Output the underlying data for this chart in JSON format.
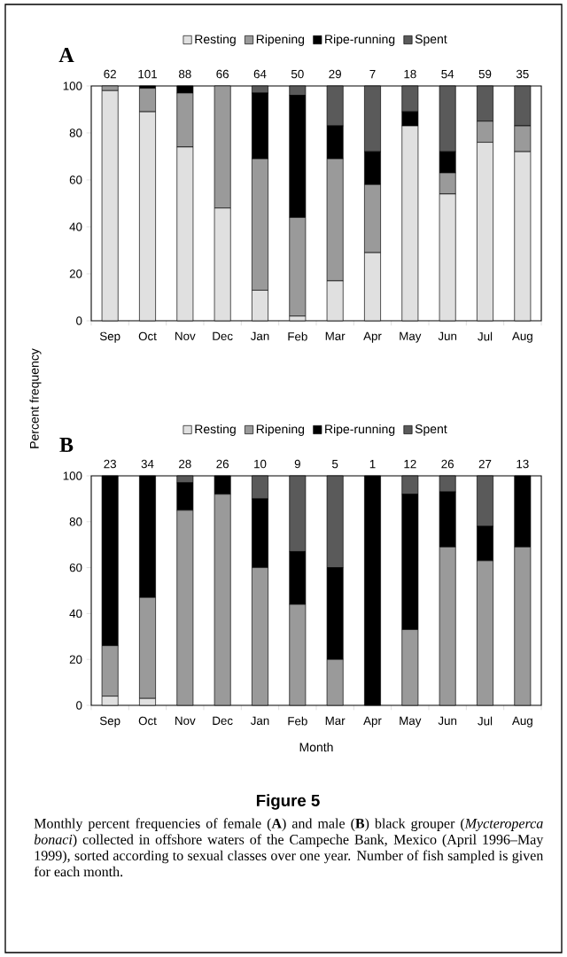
{
  "chart_data": [
    {
      "type": "bar",
      "stacked": true,
      "title": "A",
      "ylabel": "Percent frequency",
      "legend": "top",
      "categories": [
        "Sep",
        "Oct",
        "Nov",
        "Dec",
        "Jan",
        "Feb",
        "Mar",
        "Apr",
        "May",
        "Jun",
        "Jul",
        "Aug"
      ],
      "ylim": [
        0,
        100
      ],
      "yticks": [
        0,
        20,
        40,
        60,
        80,
        100
      ],
      "series": [
        {
          "name": "Resting",
          "color": "#e0e0e0",
          "values": [
            98,
            89,
            74,
            48,
            13,
            2,
            17,
            29,
            83,
            54,
            76,
            72
          ]
        },
        {
          "name": "Ripening",
          "color": "#9a9a9a",
          "values": [
            2,
            10,
            23,
            52,
            56,
            42,
            52,
            29,
            0,
            9,
            9,
            11
          ]
        },
        {
          "name": "Ripe-running",
          "color": "#000000",
          "values": [
            0,
            1,
            3,
            0,
            28,
            52,
            14,
            14,
            6,
            9,
            0,
            0
          ]
        },
        {
          "name": "Spent",
          "color": "#5a5a5a",
          "values": [
            0,
            0,
            0,
            0,
            3,
            4,
            17,
            28,
            11,
            28,
            15,
            17
          ]
        }
      ],
      "annotations": [
        {
          "text": "62",
          "x": "Sep",
          "y": 100
        },
        {
          "text": "101",
          "x": "Oct",
          "y": 100
        },
        {
          "text": "88",
          "x": "Nov",
          "y": 100
        },
        {
          "text": "66",
          "x": "Dec",
          "y": 100
        },
        {
          "text": "64",
          "x": "Jan",
          "y": 100
        },
        {
          "text": "50",
          "x": "Feb",
          "y": 100
        },
        {
          "text": "29",
          "x": "Mar",
          "y": 100
        },
        {
          "text": "7",
          "x": "Apr",
          "y": 100
        },
        {
          "text": "18",
          "x": "May",
          "y": 100
        },
        {
          "text": "54",
          "x": "Jun",
          "y": 100
        },
        {
          "text": "59",
          "x": "Jul",
          "y": 100
        },
        {
          "text": "35",
          "x": "Aug",
          "y": 100
        }
      ]
    },
    {
      "type": "bar",
      "stacked": true,
      "title": "B",
      "xlabel": "Month",
      "legend": "top",
      "categories": [
        "Sep",
        "Oct",
        "Nov",
        "Dec",
        "Jan",
        "Feb",
        "Mar",
        "Apr",
        "May",
        "Jun",
        "Jul",
        "Aug"
      ],
      "ylim": [
        0,
        100
      ],
      "yticks": [
        0,
        20,
        40,
        60,
        80,
        100
      ],
      "series": [
        {
          "name": "Resting",
          "color": "#e0e0e0",
          "values": [
            4,
            3,
            0,
            0,
            0,
            0,
            0,
            0,
            0,
            0,
            0,
            0
          ]
        },
        {
          "name": "Ripening",
          "color": "#9a9a9a",
          "values": [
            22,
            44,
            85,
            92,
            60,
            44,
            20,
            0,
            33,
            69,
            63,
            69
          ]
        },
        {
          "name": "Ripe-running",
          "color": "#000000",
          "values": [
            74,
            53,
            12,
            8,
            30,
            23,
            40,
            100,
            59,
            24,
            15,
            31
          ]
        },
        {
          "name": "Spent",
          "color": "#5a5a5a",
          "values": [
            0,
            0,
            3,
            0,
            10,
            33,
            40,
            0,
            8,
            7,
            22,
            0
          ]
        }
      ],
      "annotations": [
        {
          "text": "23",
          "x": "Sep",
          "y": 100
        },
        {
          "text": "34",
          "x": "Oct",
          "y": 100
        },
        {
          "text": "28",
          "x": "Nov",
          "y": 100
        },
        {
          "text": "26",
          "x": "Dec",
          "y": 100
        },
        {
          "text": "10",
          "x": "Jan",
          "y": 100
        },
        {
          "text": "9",
          "x": "Feb",
          "y": 100
        },
        {
          "text": "5",
          "x": "Mar",
          "y": 100
        },
        {
          "text": "1",
          "x": "Apr",
          "y": 100
        },
        {
          "text": "12",
          "x": "May",
          "y": 100
        },
        {
          "text": "26",
          "x": "Jun",
          "y": 100
        },
        {
          "text": "27",
          "x": "Jul",
          "y": 100
        },
        {
          "text": "13",
          "x": "Aug",
          "y": 100
        },
        "Figure 5",
        "Monthly percent frequencies of female (**A**) and male (**B**) black grouper (*Mycteroperca bonaci*) collected in offshore waters of the Campeche Bank, Mexico (April 1996–May 1999), sorted according to sexual classes over one year. Number of fish sampled is given for each month."
      ]
    }
  ]
}
